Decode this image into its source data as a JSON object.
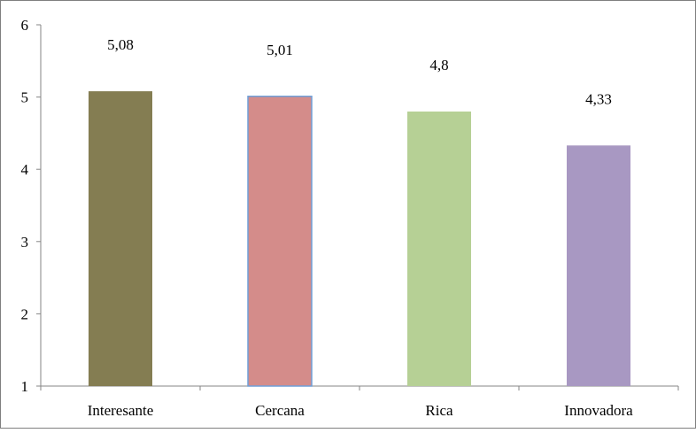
{
  "chart_data": {
    "type": "bar",
    "categories": [
      "Interesante",
      "Cercana",
      "Rica",
      "Innovadora"
    ],
    "values": [
      5.08,
      5.01,
      4.8,
      4.33
    ],
    "data_labels": [
      "5,08",
      "5,01",
      "4,8",
      "4,33"
    ],
    "colors": [
      "#847d52",
      "#d48c8a",
      "#b6d095",
      "#a898c2"
    ],
    "ylim": [
      1,
      6
    ],
    "yticks": [
      1,
      2,
      3,
      4,
      5,
      6
    ],
    "ytick_labels": [
      "1",
      "2",
      "3",
      "4",
      "5",
      "6"
    ],
    "title": "",
    "xlabel": "",
    "ylabel": "",
    "grid": false,
    "legend": "none"
  }
}
